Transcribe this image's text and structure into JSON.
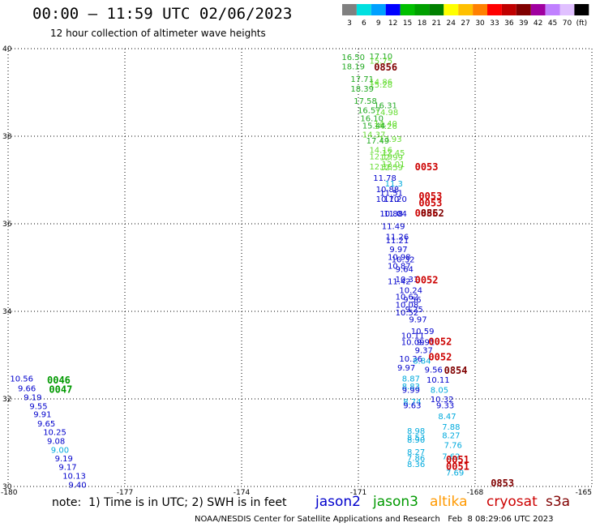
{
  "header": {
    "title": "00:00 — 11:59 UTC 02/06/2023",
    "subtitle": "12 hour collection of altimeter wave heights"
  },
  "colorbar": {
    "labels": [
      "3",
      "6",
      "9",
      "12",
      "15",
      "18",
      "21",
      "24",
      "27",
      "30",
      "33",
      "36",
      "39",
      "42",
      "45",
      "70",
      "(ft)"
    ],
    "colors": [
      "#808080",
      "#00e0e0",
      "#00a0ff",
      "#0000ff",
      "#00c000",
      "#00a000",
      "#008000",
      "#ffff00",
      "#ffc000",
      "#ff8000",
      "#ff0000",
      "#c00000",
      "#800000",
      "#a000a0",
      "#c080ff",
      "#e0c0ff",
      "#000000"
    ]
  },
  "note": "note:  1) Time is in UTC; 2) SWH is in feet",
  "satellites": [
    {
      "name": "jason2",
      "color": "#0000cc"
    },
    {
      "name": "jason3",
      "color": "#009900"
    },
    {
      "name": "altika",
      "color": "#ff9900"
    },
    {
      "name": "cryosat",
      "color": "#cc0000"
    },
    {
      "name": "s3a",
      "color": "#800000"
    }
  ],
  "footer": "NOAA/NESDIS Center for Satellite Applications and Research   Feb  8 08:29:06 UTC 2023",
  "chart_data": {
    "type": "scatter",
    "title": "00:00 — 11:59 UTC 02/06/2023",
    "subtitle": "12 hour collection of altimeter wave heights",
    "xlim": [
      -180,
      -165
    ],
    "ylim": [
      30,
      40
    ],
    "x_ticks": [
      "-180",
      "-177",
      "-174",
      "-171",
      "-168",
      "-165"
    ],
    "y_ticks": [
      "30",
      "32",
      "34",
      "36",
      "38",
      "40"
    ],
    "grid": true,
    "point_colors": {
      "green": "#22aa22",
      "lightgreen": "#66dd33",
      "blue": "#0000cc",
      "cyan": "#00aadd"
    },
    "observations": [
      {
        "lon": -171.43,
        "lat": 39.74,
        "label": "16.50",
        "color": "green"
      },
      {
        "lon": -170.72,
        "lat": 39.76,
        "label": "17.10",
        "color": "green"
      },
      {
        "lon": -170.72,
        "lat": 39.66,
        "label": "15.75",
        "color": "lightgreen"
      },
      {
        "lon": -171.43,
        "lat": 39.53,
        "label": "18.19",
        "color": "green"
      },
      {
        "lon": -171.2,
        "lat": 39.24,
        "label": "17.71",
        "color": "green"
      },
      {
        "lon": -170.72,
        "lat": 39.18,
        "label": "14.86",
        "color": "lightgreen"
      },
      {
        "lon": -170.72,
        "lat": 39.11,
        "label": "15.28",
        "color": "lightgreen"
      },
      {
        "lon": -171.2,
        "lat": 39.02,
        "label": "18.39",
        "color": "green"
      },
      {
        "lon": -171.12,
        "lat": 38.74,
        "label": "17.58",
        "color": "green"
      },
      {
        "lon": -170.6,
        "lat": 38.64,
        "label": "16.31",
        "color": "green"
      },
      {
        "lon": -171.02,
        "lat": 38.53,
        "label": "16.57",
        "color": "green"
      },
      {
        "lon": -170.57,
        "lat": 38.48,
        "label": "14.98",
        "color": "lightgreen"
      },
      {
        "lon": -170.95,
        "lat": 38.34,
        "label": "16.10",
        "color": "green"
      },
      {
        "lon": -170.6,
        "lat": 38.22,
        "label": "14.40",
        "color": "lightgreen"
      },
      {
        "lon": -170.6,
        "lat": 38.17,
        "label": "14.26",
        "color": "lightgreen"
      },
      {
        "lon": -170.9,
        "lat": 38.18,
        "label": "15.44",
        "color": "green"
      },
      {
        "lon": -170.9,
        "lat": 37.97,
        "label": "14.37",
        "color": "lightgreen"
      },
      {
        "lon": -170.48,
        "lat": 37.87,
        "label": "13.93",
        "color": "lightgreen"
      },
      {
        "lon": -170.8,
        "lat": 37.83,
        "label": "17.49",
        "color": "green"
      },
      {
        "lon": -170.72,
        "lat": 37.62,
        "label": "14.16",
        "color": "lightgreen"
      },
      {
        "lon": -170.4,
        "lat": 37.56,
        "label": "12.45",
        "color": "lightgreen"
      },
      {
        "lon": -170.72,
        "lat": 37.47,
        "label": "12.19",
        "color": "lightgreen"
      },
      {
        "lon": -170.45,
        "lat": 37.45,
        "label": "12.99",
        "color": "lightgreen"
      },
      {
        "lon": -170.4,
        "lat": 37.3,
        "label": "12.01",
        "color": "lightgreen"
      },
      {
        "lon": -170.72,
        "lat": 37.24,
        "label": "12.18",
        "color": "lightgreen"
      },
      {
        "lon": -170.45,
        "lat": 37.22,
        "label": "12.59",
        "color": "lightgreen"
      },
      {
        "lon": -170.62,
        "lat": 36.98,
        "label": "11.78",
        "color": "blue"
      },
      {
        "lon": -170.32,
        "lat": 36.85,
        "label": "11.3",
        "color": "cyan"
      },
      {
        "lon": -170.55,
        "lat": 36.72,
        "label": "10.88",
        "color": "blue"
      },
      {
        "lon": -170.45,
        "lat": 36.64,
        "label": "11.51",
        "color": "blue"
      },
      {
        "lon": -170.55,
        "lat": 36.5,
        "label": "10.70",
        "color": "blue"
      },
      {
        "lon": -170.35,
        "lat": 36.5,
        "label": "11.20",
        "color": "blue"
      },
      {
        "lon": -170.45,
        "lat": 36.17,
        "label": "10.88",
        "color": "blue"
      },
      {
        "lon": -170.35,
        "lat": 36.17,
        "label": "11.04",
        "color": "blue"
      },
      {
        "lon": -170.4,
        "lat": 35.88,
        "label": "11.49",
        "color": "blue"
      },
      {
        "lon": -170.3,
        "lat": 35.64,
        "label": "11.26",
        "color": "blue"
      },
      {
        "lon": -170.3,
        "lat": 35.56,
        "label": "11.21",
        "color": "blue"
      },
      {
        "lon": -170.2,
        "lat": 35.35,
        "label": "9.97",
        "color": "blue"
      },
      {
        "lon": -170.25,
        "lat": 35.18,
        "label": "10.98",
        "color": "blue"
      },
      {
        "lon": -170.15,
        "lat": 35.12,
        "label": "10.32",
        "color": "blue"
      },
      {
        "lon": -170.25,
        "lat": 34.97,
        "label": "10.87",
        "color": "blue"
      },
      {
        "lon": -170.05,
        "lat": 34.9,
        "label": "9.64",
        "color": "blue"
      },
      {
        "lon": -170.05,
        "lat": 34.67,
        "label": "10.31",
        "color": "blue"
      },
      {
        "lon": -170.25,
        "lat": 34.62,
        "label": "11.42",
        "color": "blue"
      },
      {
        "lon": -169.95,
        "lat": 34.42,
        "label": "10.24",
        "color": "blue"
      },
      {
        "lon": -170.05,
        "lat": 34.27,
        "label": "10.62",
        "color": "blue"
      },
      {
        "lon": -169.85,
        "lat": 34.2,
        "label": "9.56",
        "color": "blue"
      },
      {
        "lon": -170.05,
        "lat": 34.08,
        "label": "10.08",
        "color": "blue"
      },
      {
        "lon": -169.8,
        "lat": 33.98,
        "label": "9.25",
        "color": "blue"
      },
      {
        "lon": -170.05,
        "lat": 33.91,
        "label": "10.52",
        "color": "blue"
      },
      {
        "lon": -169.7,
        "lat": 33.75,
        "label": "9.97",
        "color": "blue"
      },
      {
        "lon": -169.65,
        "lat": 33.48,
        "label": "10.59",
        "color": "blue"
      },
      {
        "lon": -169.9,
        "lat": 33.38,
        "label": "10.11",
        "color": "blue"
      },
      {
        "lon": -169.5,
        "lat": 33.23,
        "label": "9.91",
        "color": "blue"
      },
      {
        "lon": -169.9,
        "lat": 33.23,
        "label": "10.09",
        "color": "blue"
      },
      {
        "lon": -169.55,
        "lat": 33.05,
        "label": "9.37",
        "color": "blue"
      },
      {
        "lon": -169.95,
        "lat": 32.85,
        "label": "10.36",
        "color": "blue"
      },
      {
        "lon": -169.6,
        "lat": 32.81,
        "label": "8.84",
        "color": "cyan"
      },
      {
        "lon": -170.0,
        "lat": 32.65,
        "label": "9.97",
        "color": "blue"
      },
      {
        "lon": -169.3,
        "lat": 32.6,
        "label": "9.56",
        "color": "blue"
      },
      {
        "lon": -169.88,
        "lat": 32.4,
        "label": "8.87",
        "color": "cyan"
      },
      {
        "lon": -169.25,
        "lat": 32.37,
        "label": "10.11",
        "color": "blue"
      },
      {
        "lon": -169.88,
        "lat": 32.22,
        "label": "8.83",
        "color": "cyan"
      },
      {
        "lon": -169.88,
        "lat": 32.14,
        "label": "9.99",
        "color": "blue"
      },
      {
        "lon": -169.15,
        "lat": 32.14,
        "label": "8.05",
        "color": "cyan"
      },
      {
        "lon": -169.15,
        "lat": 31.93,
        "label": "10.32",
        "color": "blue"
      },
      {
        "lon": -169.85,
        "lat": 31.87,
        "label": "8.74",
        "color": "cyan"
      },
      {
        "lon": -169.85,
        "lat": 31.79,
        "label": "9.63",
        "color": "blue"
      },
      {
        "lon": -169.0,
        "lat": 31.79,
        "label": "9.33",
        "color": "blue"
      },
      {
        "lon": -168.95,
        "lat": 31.54,
        "label": "8.47",
        "color": "cyan"
      },
      {
        "lon": -168.85,
        "lat": 31.3,
        "label": "7.88",
        "color": "cyan"
      },
      {
        "lon": -169.75,
        "lat": 31.2,
        "label": "8.98",
        "color": "cyan"
      },
      {
        "lon": -168.85,
        "lat": 31.1,
        "label": "8.27",
        "color": "cyan"
      },
      {
        "lon": -169.75,
        "lat": 31.06,
        "label": "8.53",
        "color": "cyan"
      },
      {
        "lon": -169.75,
        "lat": 31.0,
        "label": "8.90",
        "color": "cyan"
      },
      {
        "lon": -168.8,
        "lat": 30.88,
        "label": "7.76",
        "color": "cyan"
      },
      {
        "lon": -169.75,
        "lat": 30.72,
        "label": "8.27",
        "color": "cyan"
      },
      {
        "lon": -168.85,
        "lat": 30.62,
        "label": "7.62",
        "color": "cyan"
      },
      {
        "lon": -169.75,
        "lat": 30.58,
        "label": "7.86",
        "color": "cyan"
      },
      {
        "lon": -169.75,
        "lat": 30.44,
        "label": "8.36",
        "color": "cyan"
      },
      {
        "lon": -168.75,
        "lat": 30.25,
        "label": "7.69",
        "color": "cyan"
      },
      {
        "lon": -179.95,
        "lat": 32.4,
        "label": "10.56",
        "color": "blue"
      },
      {
        "lon": -179.75,
        "lat": 32.18,
        "label": "9.66",
        "color": "blue"
      },
      {
        "lon": -179.6,
        "lat": 31.97,
        "label": "9.19",
        "color": "blue"
      },
      {
        "lon": -179.45,
        "lat": 31.77,
        "label": "9.55",
        "color": "blue"
      },
      {
        "lon": -179.35,
        "lat": 31.58,
        "label": "9.91",
        "color": "blue"
      },
      {
        "lon": -179.25,
        "lat": 31.37,
        "label": "9.65",
        "color": "blue"
      },
      {
        "lon": -179.1,
        "lat": 31.18,
        "label": "10.25",
        "color": "blue"
      },
      {
        "lon": -179.0,
        "lat": 30.97,
        "label": "9.08",
        "color": "blue"
      },
      {
        "lon": -178.9,
        "lat": 30.77,
        "label": "9.00",
        "color": "cyan"
      },
      {
        "lon": -178.8,
        "lat": 30.57,
        "label": "9.19",
        "color": "blue"
      },
      {
        "lon": -178.7,
        "lat": 30.38,
        "label": "9.17",
        "color": "blue"
      },
      {
        "lon": -178.6,
        "lat": 30.18,
        "label": "10.13",
        "color": "blue"
      },
      {
        "lon": -178.45,
        "lat": 29.97,
        "label": "9.40",
        "color": "blue"
      }
    ],
    "time_markers": [
      {
        "lon": -170.6,
        "lat": 39.5,
        "label": "0856",
        "satellite": "s3a"
      },
      {
        "lon": -169.55,
        "lat": 37.22,
        "label": "0053",
        "satellite": "cryosat"
      },
      {
        "lon": -169.45,
        "lat": 36.56,
        "label": "0053",
        "satellite": "cryosat"
      },
      {
        "lon": -169.45,
        "lat": 36.4,
        "label": "0053",
        "satellite": "cryosat"
      },
      {
        "lon": -169.55,
        "lat": 36.17,
        "label": "0856",
        "satellite": "cryosat"
      },
      {
        "lon": -169.4,
        "lat": 36.17,
        "label": "0852",
        "satellite": "s3a"
      },
      {
        "lon": -169.55,
        "lat": 34.64,
        "label": "0052",
        "satellite": "cryosat"
      },
      {
        "lon": -169.2,
        "lat": 33.23,
        "label": "0052",
        "satellite": "cryosat"
      },
      {
        "lon": -169.2,
        "lat": 32.88,
        "label": "0052",
        "satellite": "cryosat"
      },
      {
        "lon": -168.8,
        "lat": 32.57,
        "label": "0854",
        "satellite": "s3a"
      },
      {
        "lon": -168.75,
        "lat": 30.54,
        "label": "0051",
        "satellite": "cryosat"
      },
      {
        "lon": -168.75,
        "lat": 30.38,
        "label": "0051",
        "satellite": "cryosat"
      },
      {
        "lon": -167.6,
        "lat": 30.0,
        "label": "0853",
        "satellite": "s3a"
      },
      {
        "lon": -179.0,
        "lat": 32.35,
        "label": "0046",
        "satellite": "jason3"
      },
      {
        "lon": -178.95,
        "lat": 32.14,
        "label": "0047",
        "satellite": "jason3"
      }
    ]
  }
}
